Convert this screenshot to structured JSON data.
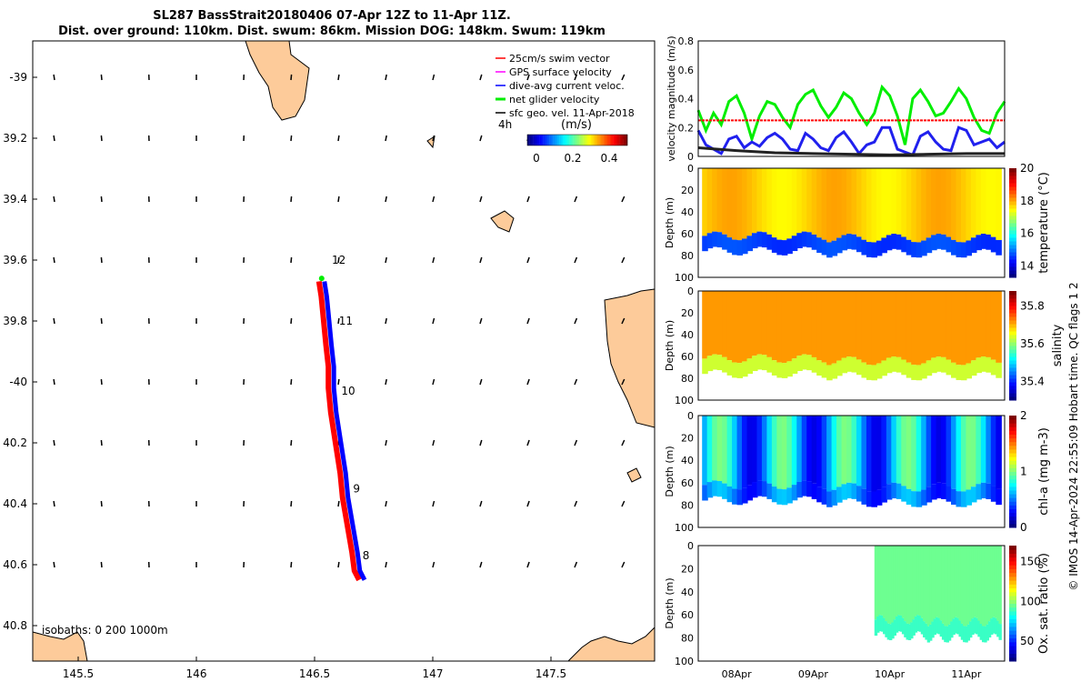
{
  "title": {
    "line1": "SL287 BassStrait20180406 07-Apr 12Z to 11-Apr 11Z.",
    "line2": "Dist. over ground: 110km. Dist. swum: 86km. Mission DOG: 148km. Swum: 119km"
  },
  "copyright": "© IMOS 14-Apr-2024 22:55:09 Hobart time. QC flags 1  2",
  "chart_data": [
    {
      "type": "map",
      "xlim": [
        145.31,
        147.94
      ],
      "ylim": [
        -40.9,
        -38.88
      ],
      "xticks": [
        {
          "v": 145.5,
          "label": "145.5"
        },
        {
          "v": 146,
          "label": "146"
        },
        {
          "v": 146.5,
          "label": "146.5"
        },
        {
          "v": 147,
          "label": "147"
        },
        {
          "v": 147.5,
          "label": "147.5"
        }
      ],
      "yticks": [
        {
          "v": -39,
          "label": "-39"
        },
        {
          "v": -39.2,
          "label": "39.2"
        },
        {
          "v": -39.4,
          "label": "39.4"
        },
        {
          "v": -39.6,
          "label": "39.6"
        },
        {
          "v": -39.8,
          "label": "39.8"
        },
        {
          "v": -40,
          "label": "-40"
        },
        {
          "v": -40.2,
          "label": "40.2"
        },
        {
          "v": -40.4,
          "label": "40.4"
        },
        {
          "v": -40.6,
          "label": "40.6"
        },
        {
          "v": -40.8,
          "label": "40.8"
        }
      ],
      "legend": [
        "25cm/s swim vector",
        "GPS surface velocity",
        "dive-avg current veloc.",
        "net glider velocity",
        "sfc geo. vel. 11-Apr-2018"
      ],
      "legend_colors": [
        "#ff0000",
        "#ff00ff",
        "#0000ff",
        "#00ee00",
        "#000000"
      ],
      "interval_label": "4h",
      "colorbar": {
        "label": "(m/s)",
        "ticks": [
          "0",
          "0.2",
          "0.4"
        ],
        "range": [
          -0.05,
          0.5
        ]
      },
      "isobaths_label": "isobaths: 0   200  1000m",
      "track": [
        [
          146.53,
          -39.67
        ],
        [
          146.54,
          -39.72
        ],
        [
          146.55,
          -39.8
        ],
        [
          146.56,
          -39.88
        ],
        [
          146.57,
          -39.95
        ],
        [
          146.57,
          -40.02
        ],
        [
          146.58,
          -40.1
        ],
        [
          146.6,
          -40.2
        ],
        [
          146.62,
          -40.3
        ],
        [
          146.63,
          -40.38
        ],
        [
          146.65,
          -40.47
        ],
        [
          146.67,
          -40.56
        ],
        [
          146.68,
          -40.62
        ],
        [
          146.7,
          -40.65
        ]
      ],
      "day_labels": [
        {
          "label": "12",
          "lon": 146.55,
          "lat": -39.6
        },
        {
          "label": "11",
          "lon": 146.58,
          "lat": -39.8
        },
        {
          "label": "10",
          "lon": 146.59,
          "lat": -40.03
        },
        {
          "label": "9",
          "lon": 146.64,
          "lat": -40.35
        },
        {
          "label": "8",
          "lon": 146.68,
          "lat": -40.57
        }
      ]
    },
    {
      "type": "line",
      "ylabel": "velocity magnitude (m/s)",
      "ylim": [
        0,
        0.8
      ],
      "yticks": [
        "0",
        "0.2",
        "0.4",
        "0.6",
        "0.8"
      ],
      "xlim": [
        0,
        4
      ],
      "series": [
        {
          "name": "net glider velocity",
          "color": "#00ee00",
          "x": [
            0,
            0.1,
            0.2,
            0.3,
            0.4,
            0.5,
            0.6,
            0.7,
            0.8,
            0.9,
            1.0,
            1.1,
            1.2,
            1.3,
            1.4,
            1.5,
            1.6,
            1.7,
            1.8,
            1.9,
            2.0,
            2.1,
            2.2,
            2.3,
            2.4,
            2.5,
            2.6,
            2.7,
            2.8,
            2.9,
            3.0,
            3.1,
            3.2,
            3.3,
            3.4,
            3.5,
            3.6,
            3.7,
            3.8,
            3.9,
            4.0
          ],
          "values": [
            0.32,
            0.18,
            0.3,
            0.22,
            0.38,
            0.42,
            0.3,
            0.12,
            0.28,
            0.38,
            0.36,
            0.27,
            0.2,
            0.36,
            0.43,
            0.46,
            0.35,
            0.27,
            0.34,
            0.44,
            0.4,
            0.3,
            0.22,
            0.3,
            0.48,
            0.42,
            0.28,
            0.08,
            0.4,
            0.46,
            0.38,
            0.28,
            0.3,
            0.38,
            0.47,
            0.4,
            0.27,
            0.18,
            0.16,
            0.3,
            0.38
          ]
        },
        {
          "name": "dive-avg current veloc.",
          "color": "#2020ee",
          "x": [
            0,
            0.1,
            0.2,
            0.3,
            0.4,
            0.5,
            0.6,
            0.7,
            0.8,
            0.9,
            1.0,
            1.1,
            1.2,
            1.3,
            1.4,
            1.5,
            1.6,
            1.7,
            1.8,
            1.9,
            2.0,
            2.1,
            2.2,
            2.3,
            2.4,
            2.5,
            2.6,
            2.7,
            2.8,
            2.9,
            3.0,
            3.1,
            3.2,
            3.3,
            3.4,
            3.5,
            3.6,
            3.7,
            3.8,
            3.9,
            4.0
          ],
          "values": [
            0.18,
            0.08,
            0.05,
            0.02,
            0.12,
            0.14,
            0.06,
            0.1,
            0.07,
            0.13,
            0.16,
            0.12,
            0.05,
            0.04,
            0.16,
            0.12,
            0.06,
            0.04,
            0.13,
            0.17,
            0.1,
            0.02,
            0.08,
            0.1,
            0.2,
            0.2,
            0.05,
            0.03,
            0.01,
            0.14,
            0.17,
            0.1,
            0.05,
            0.04,
            0.2,
            0.18,
            0.08,
            0.1,
            0.12,
            0.06,
            0.1
          ]
        },
        {
          "name": "swim vector",
          "color": "#ff0000",
          "x": [
            0,
            4
          ],
          "values": [
            0.25,
            0.25
          ]
        },
        {
          "name": "sfc geo. vel.",
          "color": "#222222",
          "x": [
            0,
            0.5,
            1,
            1.5,
            2,
            2.5,
            3,
            3.5,
            4
          ],
          "values": [
            0.06,
            0.04,
            0.025,
            0.02,
            0.015,
            0.01,
            0.015,
            0.02,
            0.02
          ]
        }
      ]
    },
    {
      "type": "heatmap",
      "var": "temperature",
      "cbar_label": "temperature (°C)",
      "ctick": [
        "14",
        "16",
        "18",
        "20"
      ],
      "crange": [
        13.3,
        20
      ],
      "ylabel": "Depth (m)",
      "ylim": [
        0,
        100
      ],
      "yticks": [
        "0",
        "20",
        "40",
        "60",
        "80",
        "100"
      ],
      "surface": 17.8,
      "bottom": 14.3,
      "bottom_depth": 78
    },
    {
      "type": "heatmap",
      "var": "salinity",
      "cbar_label": "salinity",
      "ctick": [
        "35.4",
        "35.6",
        "35.8"
      ],
      "crange": [
        35.3,
        35.88
      ],
      "ylabel": "Depth (m)",
      "ylim": [
        0,
        100
      ],
      "yticks": [
        "0",
        "20",
        "40",
        "60",
        "80",
        "100"
      ],
      "surface": 35.72,
      "bottom": 35.55,
      "bottom_depth": 78
    },
    {
      "type": "heatmap",
      "var": "chl-a",
      "cbar_label": "chl-a (mg m-3)",
      "ctick": [
        "0",
        "1",
        "2"
      ],
      "crange": [
        0,
        2
      ],
      "ylabel": "Depth (m)",
      "ylim": [
        0,
        100
      ],
      "yticks": [
        "0",
        "20",
        "40",
        "60",
        "80",
        "100"
      ],
      "surface": 0.6,
      "bottom": 0.3,
      "bottom_depth": 78
    },
    {
      "type": "heatmap",
      "var": "oxygen",
      "cbar_label": "Ox. sat. ratio (%)",
      "ctick": [
        "50",
        "100",
        "150"
      ],
      "crange": [
        25,
        170
      ],
      "ylabel": "Depth (m)",
      "ylim": [
        0,
        100
      ],
      "yticks": [
        "0",
        "20",
        "40",
        "60",
        "80",
        "100"
      ],
      "surface": 95,
      "bottom": 80,
      "bottom_depth": 80,
      "start_day": 2.3
    },
    {
      "type": "axis",
      "xticks": [
        {
          "v": 0.5,
          "label": "08Apr"
        },
        {
          "v": 1.5,
          "label": "09Apr"
        },
        {
          "v": 2.5,
          "label": "10Apr"
        },
        {
          "v": 3.5,
          "label": "11Apr"
        }
      ]
    }
  ]
}
